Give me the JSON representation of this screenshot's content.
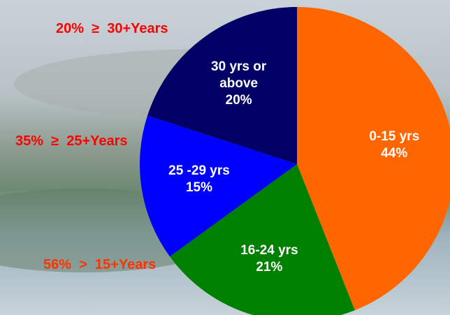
{
  "chart_data": {
    "type": "pie",
    "categories": [
      "0-15 yrs",
      "16-24 yrs",
      "25 -29 yrs",
      "30 yrs or above"
    ],
    "values": [
      44,
      21,
      15,
      20
    ],
    "value_labels": [
      "44%",
      "21%",
      "15%",
      "20%"
    ],
    "colors": [
      "#ff6600",
      "#008000",
      "#0000ff",
      "#000066"
    ],
    "annotations": [
      {
        "text": "20%  ≥  30+Years",
        "color": "#ff0000"
      },
      {
        "text": "35%  ≥  25+Years",
        "color": "#ff0000"
      },
      {
        "text": "56%  >  15+Years",
        "color": "#ff3300"
      }
    ]
  }
}
